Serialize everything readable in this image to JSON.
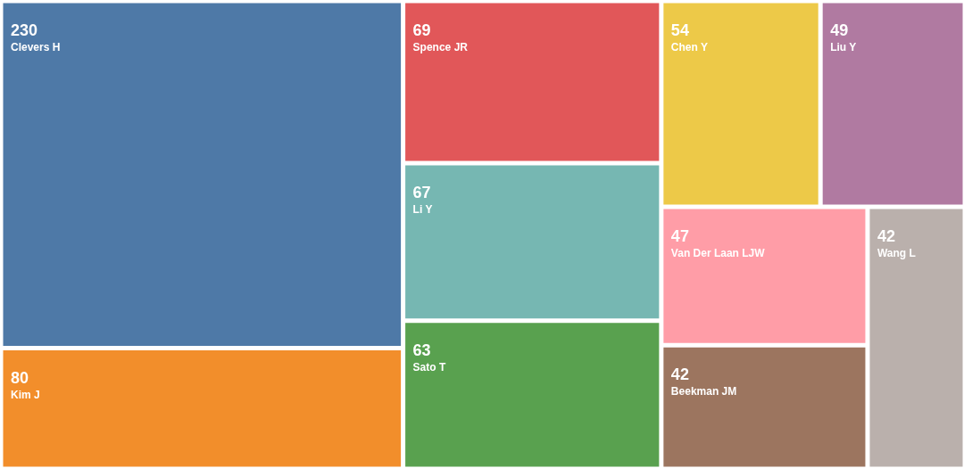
{
  "chart_data": {
    "type": "other",
    "categories": [
      "Clevers H",
      "Kim J",
      "Spence JR",
      "Li Y",
      "Sato T",
      "Chen Y",
      "Liu Y",
      "Van Der Laan LJW",
      "Beekman JM",
      "Wang L"
    ],
    "values": [
      230,
      80,
      69,
      67,
      63,
      54,
      49,
      47,
      42,
      42
    ],
    "colors": [
      "#4e79a7",
      "#f28e2b",
      "#e15759",
      "#76b7b2",
      "#59a14f",
      "#edc948",
      "#b07aa1",
      "#ff9da7",
      "#9c755f",
      "#bab0ac"
    ],
    "data_labels": true
  }
}
